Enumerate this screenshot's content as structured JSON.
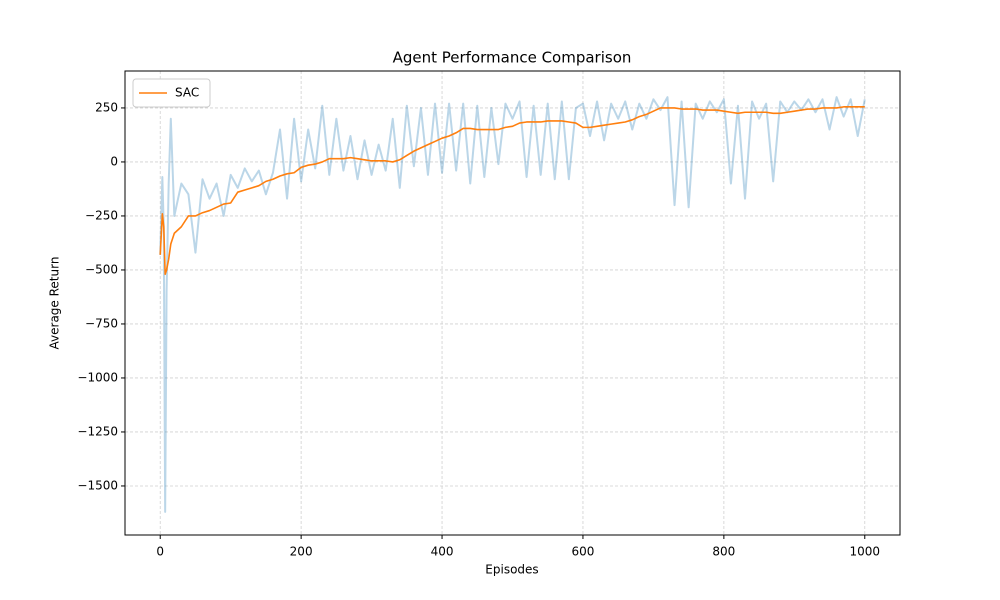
{
  "chart_data": {
    "type": "line",
    "title": "Agent Performance Comparison",
    "x_label": "Episodes",
    "y_label": "Average Return",
    "x": [
      0,
      3,
      5,
      7,
      9,
      12,
      15,
      20,
      30,
      40,
      50,
      60,
      70,
      80,
      90,
      100,
      110,
      120,
      130,
      140,
      150,
      160,
      170,
      180,
      190,
      200,
      210,
      220,
      230,
      240,
      250,
      260,
      270,
      280,
      290,
      300,
      310,
      320,
      330,
      340,
      350,
      360,
      370,
      380,
      390,
      400,
      410,
      420,
      430,
      440,
      450,
      460,
      470,
      480,
      490,
      500,
      510,
      520,
      530,
      540,
      550,
      560,
      570,
      580,
      590,
      600,
      610,
      620,
      630,
      640,
      650,
      660,
      670,
      680,
      690,
      700,
      710,
      720,
      730,
      740,
      750,
      760,
      770,
      780,
      790,
      800,
      810,
      820,
      830,
      840,
      850,
      860,
      870,
      880,
      890,
      900,
      910,
      920,
      930,
      940,
      950,
      960,
      970,
      980,
      990,
      1000
    ],
    "series": [
      {
        "color": "#1f77b4",
        "alpha": 0.3,
        "width": 2,
        "values": [
          -430,
          -70,
          -300,
          -1620,
          -600,
          -100,
          200,
          -250,
          -100,
          -150,
          -420,
          -80,
          -170,
          -100,
          -250,
          -60,
          -120,
          -30,
          -90,
          -40,
          -150,
          -50,
          150,
          -170,
          200,
          -90,
          150,
          -30,
          260,
          -60,
          200,
          -40,
          120,
          -80,
          100,
          -60,
          80,
          -40,
          200,
          -120,
          260,
          -20,
          250,
          -60,
          270,
          -50,
          270,
          -40,
          270,
          -100,
          260,
          -70,
          250,
          -10,
          270,
          200,
          280,
          -70,
          260,
          -60,
          270,
          -80,
          280,
          -80,
          250,
          270,
          120,
          280,
          100,
          270,
          200,
          280,
          150,
          270,
          200,
          290,
          240,
          300,
          -200,
          280,
          -210,
          270,
          200,
          280,
          230,
          290,
          -100,
          260,
          -170,
          280,
          200,
          270,
          -90,
          280,
          230,
          280,
          240,
          290,
          230,
          290,
          150,
          300,
          210,
          290,
          120,
          290
        ]
      },
      {
        "name": "SAC",
        "color": "#ff7f0e",
        "alpha": 1,
        "width": 1.6,
        "values": [
          -430,
          -240,
          -300,
          -520,
          -500,
          -450,
          -380,
          -330,
          -300,
          -250,
          -250,
          -235,
          -225,
          -210,
          -195,
          -190,
          -140,
          -130,
          -120,
          -110,
          -90,
          -80,
          -65,
          -55,
          -50,
          -25,
          -15,
          -10,
          0,
          15,
          15,
          15,
          20,
          15,
          10,
          5,
          5,
          5,
          0,
          10,
          30,
          50,
          65,
          80,
          95,
          110,
          120,
          135,
          155,
          155,
          150,
          150,
          150,
          150,
          160,
          165,
          180,
          185,
          185,
          185,
          190,
          190,
          190,
          185,
          180,
          160,
          160,
          165,
          170,
          175,
          180,
          185,
          195,
          210,
          220,
          235,
          250,
          250,
          250,
          245,
          245,
          245,
          240,
          240,
          240,
          235,
          230,
          225,
          230,
          230,
          230,
          230,
          225,
          225,
          230,
          235,
          240,
          245,
          245,
          250,
          250,
          250,
          255,
          255,
          255,
          255
        ]
      }
    ],
    "xlim": [
      -50,
      1050
    ],
    "ylim": [
      -1727,
      421
    ],
    "xticks": [
      0,
      200,
      400,
      600,
      800,
      1000
    ],
    "yticks": [
      {
        "value": -1500,
        "label": "−1500"
      },
      {
        "value": -1250,
        "label": "−1250"
      },
      {
        "value": -1000,
        "label": "−1000"
      },
      {
        "value": -750,
        "label": "−750"
      },
      {
        "value": -500,
        "label": "−500"
      },
      {
        "value": -250,
        "label": "−250"
      },
      0,
      250
    ],
    "grid": true,
    "legend": "upper left"
  }
}
